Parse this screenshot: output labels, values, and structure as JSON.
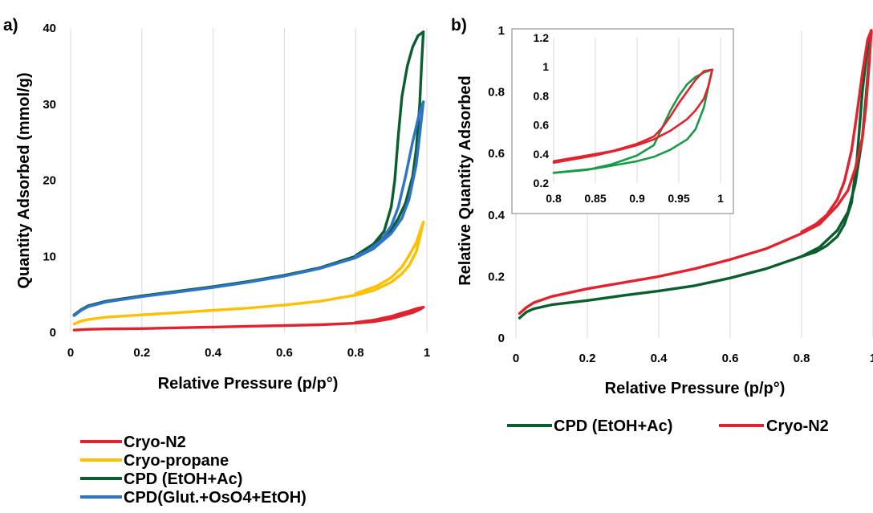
{
  "colors": {
    "cryo_n2": "#e0242f",
    "cryo_propane": "#ffc000",
    "cpd_etoh_ac": "#0b5e2e",
    "cpd_glut": "#2f74c8",
    "inset_cpd": "#1a9a48"
  },
  "chart_data": [
    {
      "panel_label": "a)",
      "type": "line",
      "xlabel": "Relative Pressure (p/p°)",
      "ylabel": "Quantity Adsorbed (mmol/g)",
      "xlim": [
        0,
        1
      ],
      "ylim": [
        0,
        40
      ],
      "xticks": [
        "0",
        "0.2",
        "0.4",
        "0.6",
        "0.8",
        "1"
      ],
      "yticks": [
        "0",
        "10",
        "20",
        "30",
        "40"
      ],
      "grid": "vertical",
      "legend_position": "bottom",
      "series": [
        {
          "name": "Cryo-N2",
          "color_key": "cryo_n2",
          "adsorption": [
            [
              0.01,
              0.3
            ],
            [
              0.05,
              0.4
            ],
            [
              0.1,
              0.45
            ],
            [
              0.2,
              0.5
            ],
            [
              0.3,
              0.6
            ],
            [
              0.4,
              0.7
            ],
            [
              0.5,
              0.8
            ],
            [
              0.6,
              0.9
            ],
            [
              0.7,
              1.0
            ],
            [
              0.8,
              1.2
            ],
            [
              0.85,
              1.4
            ],
            [
              0.9,
              1.8
            ],
            [
              0.93,
              2.2
            ],
            [
              0.96,
              2.6
            ],
            [
              0.98,
              3.0
            ],
            [
              0.99,
              3.3
            ]
          ],
          "desorption": [
            [
              0.99,
              3.3
            ],
            [
              0.97,
              3.1
            ],
            [
              0.95,
              2.8
            ],
            [
              0.92,
              2.4
            ],
            [
              0.9,
              2.1
            ],
            [
              0.85,
              1.6
            ],
            [
              0.8,
              1.3
            ]
          ]
        },
        {
          "name": "Cryo-propane",
          "color_key": "cryo_propane",
          "adsorption": [
            [
              0.01,
              1.1
            ],
            [
              0.03,
              1.5
            ],
            [
              0.05,
              1.7
            ],
            [
              0.1,
              2.0
            ],
            [
              0.2,
              2.3
            ],
            [
              0.3,
              2.6
            ],
            [
              0.4,
              2.9
            ],
            [
              0.5,
              3.2
            ],
            [
              0.6,
              3.6
            ],
            [
              0.7,
              4.1
            ],
            [
              0.8,
              4.9
            ],
            [
              0.85,
              5.5
            ],
            [
              0.9,
              6.6
            ],
            [
              0.93,
              7.7
            ],
            [
              0.95,
              8.8
            ],
            [
              0.97,
              10.6
            ],
            [
              0.98,
              12.4
            ],
            [
              0.99,
              14.5
            ]
          ],
          "desorption": [
            [
              0.99,
              14.5
            ],
            [
              0.985,
              13.8
            ],
            [
              0.97,
              11.8
            ],
            [
              0.95,
              10.1
            ],
            [
              0.93,
              8.6
            ],
            [
              0.9,
              7.2
            ],
            [
              0.86,
              6.1
            ],
            [
              0.8,
              5.1
            ]
          ]
        },
        {
          "name": "CPD (EtOH+Ac)",
          "color_key": "cpd_etoh_ac",
          "adsorption": [
            [
              0.01,
              2.3
            ],
            [
              0.03,
              3.0
            ],
            [
              0.05,
              3.5
            ],
            [
              0.1,
              4.1
            ],
            [
              0.2,
              4.8
            ],
            [
              0.3,
              5.4
            ],
            [
              0.4,
              6.0
            ],
            [
              0.5,
              6.7
            ],
            [
              0.6,
              7.5
            ],
            [
              0.7,
              8.5
            ],
            [
              0.8,
              10.0
            ],
            [
              0.85,
              11.4
            ],
            [
              0.9,
              13.5
            ],
            [
              0.92,
              15.0
            ],
            [
              0.94,
              17.0
            ],
            [
              0.96,
              20.5
            ],
            [
              0.97,
              24.0
            ],
            [
              0.98,
              30.0
            ],
            [
              0.985,
              35.0
            ],
            [
              0.99,
              39.5
            ]
          ],
          "desorption": [
            [
              0.99,
              39.5
            ],
            [
              0.975,
              39.0
            ],
            [
              0.96,
              37.5
            ],
            [
              0.945,
              35.0
            ],
            [
              0.93,
              31.0
            ],
            [
              0.92,
              26.0
            ],
            [
              0.91,
              20.0
            ],
            [
              0.9,
              16.5
            ],
            [
              0.88,
              13.3
            ],
            [
              0.85,
              11.6
            ],
            [
              0.8,
              10.1
            ]
          ]
        },
        {
          "name": "CPD(Glut.+OsO4+EtOH)",
          "color_key": "cpd_glut",
          "adsorption": [
            [
              0.01,
              2.2
            ],
            [
              0.03,
              2.9
            ],
            [
              0.05,
              3.4
            ],
            [
              0.1,
              4.0
            ],
            [
              0.2,
              4.7
            ],
            [
              0.3,
              5.3
            ],
            [
              0.4,
              5.9
            ],
            [
              0.5,
              6.6
            ],
            [
              0.6,
              7.4
            ],
            [
              0.7,
              8.4
            ],
            [
              0.8,
              9.8
            ],
            [
              0.85,
              11.0
            ],
            [
              0.9,
              13.0
            ],
            [
              0.93,
              15.0
            ],
            [
              0.95,
              17.5
            ],
            [
              0.97,
              22.0
            ],
            [
              0.98,
              26.0
            ],
            [
              0.99,
              30.3
            ]
          ],
          "desorption": [
            [
              0.99,
              30.3
            ],
            [
              0.98,
              29.0
            ],
            [
              0.96,
              25.0
            ],
            [
              0.94,
              20.5
            ],
            [
              0.92,
              16.5
            ],
            [
              0.9,
              14.0
            ],
            [
              0.87,
              12.0
            ],
            [
              0.83,
              10.6
            ],
            [
              0.8,
              10.0
            ]
          ]
        }
      ]
    },
    {
      "panel_label": "b)",
      "type": "line",
      "xlabel": "Relative Pressure (p/p°)",
      "ylabel": "Relative Quantity Adsorbed",
      "xlim": [
        0,
        1
      ],
      "ylim": [
        0,
        1
      ],
      "xticks": [
        "0",
        "0.2",
        "0.4",
        "0.6",
        "0.8",
        "1"
      ],
      "yticks": [
        "0",
        "0.2",
        "0.4",
        "0.6",
        "0.8",
        "1"
      ],
      "grid": "vertical",
      "legend_position": "bottom",
      "series": [
        {
          "name": "CPD (EtOH+Ac)",
          "color_key": "cpd_etoh_ac",
          "adsorption": [
            [
              0.01,
              0.065
            ],
            [
              0.03,
              0.085
            ],
            [
              0.05,
              0.095
            ],
            [
              0.1,
              0.108
            ],
            [
              0.2,
              0.122
            ],
            [
              0.3,
              0.138
            ],
            [
              0.4,
              0.153
            ],
            [
              0.5,
              0.17
            ],
            [
              0.6,
              0.195
            ],
            [
              0.7,
              0.225
            ],
            [
              0.8,
              0.265
            ],
            [
              0.85,
              0.295
            ],
            [
              0.9,
              0.35
            ],
            [
              0.93,
              0.41
            ],
            [
              0.95,
              0.5
            ],
            [
              0.97,
              0.65
            ],
            [
              0.98,
              0.78
            ],
            [
              0.99,
              0.92
            ],
            [
              0.995,
              1.0
            ]
          ],
          "desorption": [
            [
              0.995,
              1.0
            ],
            [
              0.985,
              0.95
            ],
            [
              0.97,
              0.8
            ],
            [
              0.955,
              0.58
            ],
            [
              0.94,
              0.44
            ],
            [
              0.92,
              0.37
            ],
            [
              0.9,
              0.33
            ],
            [
              0.87,
              0.3
            ],
            [
              0.84,
              0.28
            ],
            [
              0.8,
              0.265
            ]
          ]
        },
        {
          "name": "Cryo-N2",
          "color_key": "cryo_n2",
          "adsorption": [
            [
              0.01,
              0.08
            ],
            [
              0.03,
              0.1
            ],
            [
              0.05,
              0.115
            ],
            [
              0.1,
              0.135
            ],
            [
              0.2,
              0.16
            ],
            [
              0.3,
              0.18
            ],
            [
              0.4,
              0.2
            ],
            [
              0.5,
              0.225
            ],
            [
              0.6,
              0.255
            ],
            [
              0.7,
              0.29
            ],
            [
              0.8,
              0.34
            ],
            [
              0.85,
              0.37
            ],
            [
              0.9,
              0.43
            ],
            [
              0.93,
              0.48
            ],
            [
              0.95,
              0.55
            ],
            [
              0.97,
              0.65
            ],
            [
              0.98,
              0.75
            ],
            [
              0.99,
              0.9
            ],
            [
              0.995,
              1.0
            ]
          ],
          "desorption": [
            [
              0.995,
              1.0
            ],
            [
              0.985,
              0.97
            ],
            [
              0.97,
              0.86
            ],
            [
              0.955,
              0.73
            ],
            [
              0.94,
              0.61
            ],
            [
              0.92,
              0.51
            ],
            [
              0.9,
              0.45
            ],
            [
              0.87,
              0.4
            ],
            [
              0.84,
              0.37
            ],
            [
              0.8,
              0.345
            ]
          ]
        }
      ],
      "inset": {
        "xlim": [
          0.8,
          1
        ],
        "ylim": [
          0.2,
          1.2
        ],
        "xticks": [
          "0.8",
          "0.85",
          "0.9",
          "0.95",
          "1"
        ],
        "yticks": [
          "0.2",
          "0.4",
          "0.6",
          "0.8",
          "1",
          "1.2"
        ],
        "series": [
          {
            "name": "CPD (EtOH+Ac)",
            "color_key": "inset_cpd",
            "adsorption": [
              [
                0.8,
                0.27
              ],
              [
                0.85,
                0.3
              ],
              [
                0.88,
                0.33
              ],
              [
                0.9,
                0.35
              ],
              [
                0.92,
                0.38
              ],
              [
                0.94,
                0.43
              ],
              [
                0.96,
                0.5
              ],
              [
                0.97,
                0.57
              ],
              [
                0.98,
                0.72
              ],
              [
                0.985,
                0.85
              ],
              [
                0.99,
                0.98
              ]
            ],
            "desorption": [
              [
                0.99,
                0.98
              ],
              [
                0.98,
                0.96
              ],
              [
                0.97,
                0.93
              ],
              [
                0.96,
                0.88
              ],
              [
                0.95,
                0.8
              ],
              [
                0.94,
                0.7
              ],
              [
                0.93,
                0.58
              ],
              [
                0.92,
                0.46
              ],
              [
                0.9,
                0.39
              ],
              [
                0.87,
                0.33
              ],
              [
                0.84,
                0.29
              ],
              [
                0.8,
                0.27
              ]
            ]
          },
          {
            "name": "Cryo-N2",
            "color_key": "cryo_n2",
            "adsorption": [
              [
                0.8,
                0.34
              ],
              [
                0.85,
                0.39
              ],
              [
                0.88,
                0.43
              ],
              [
                0.9,
                0.46
              ],
              [
                0.92,
                0.5
              ],
              [
                0.94,
                0.56
              ],
              [
                0.96,
                0.64
              ],
              [
                0.97,
                0.7
              ],
              [
                0.98,
                0.78
              ],
              [
                0.985,
                0.86
              ],
              [
                0.99,
                0.98
              ]
            ],
            "desorption": [
              [
                0.99,
                0.98
              ],
              [
                0.98,
                0.97
              ],
              [
                0.97,
                0.91
              ],
              [
                0.96,
                0.83
              ],
              [
                0.95,
                0.75
              ],
              [
                0.94,
                0.66
              ],
              [
                0.93,
                0.58
              ],
              [
                0.92,
                0.52
              ],
              [
                0.9,
                0.47
              ],
              [
                0.87,
                0.42
              ],
              [
                0.84,
                0.39
              ],
              [
                0.8,
                0.35
              ]
            ]
          }
        ]
      }
    }
  ]
}
